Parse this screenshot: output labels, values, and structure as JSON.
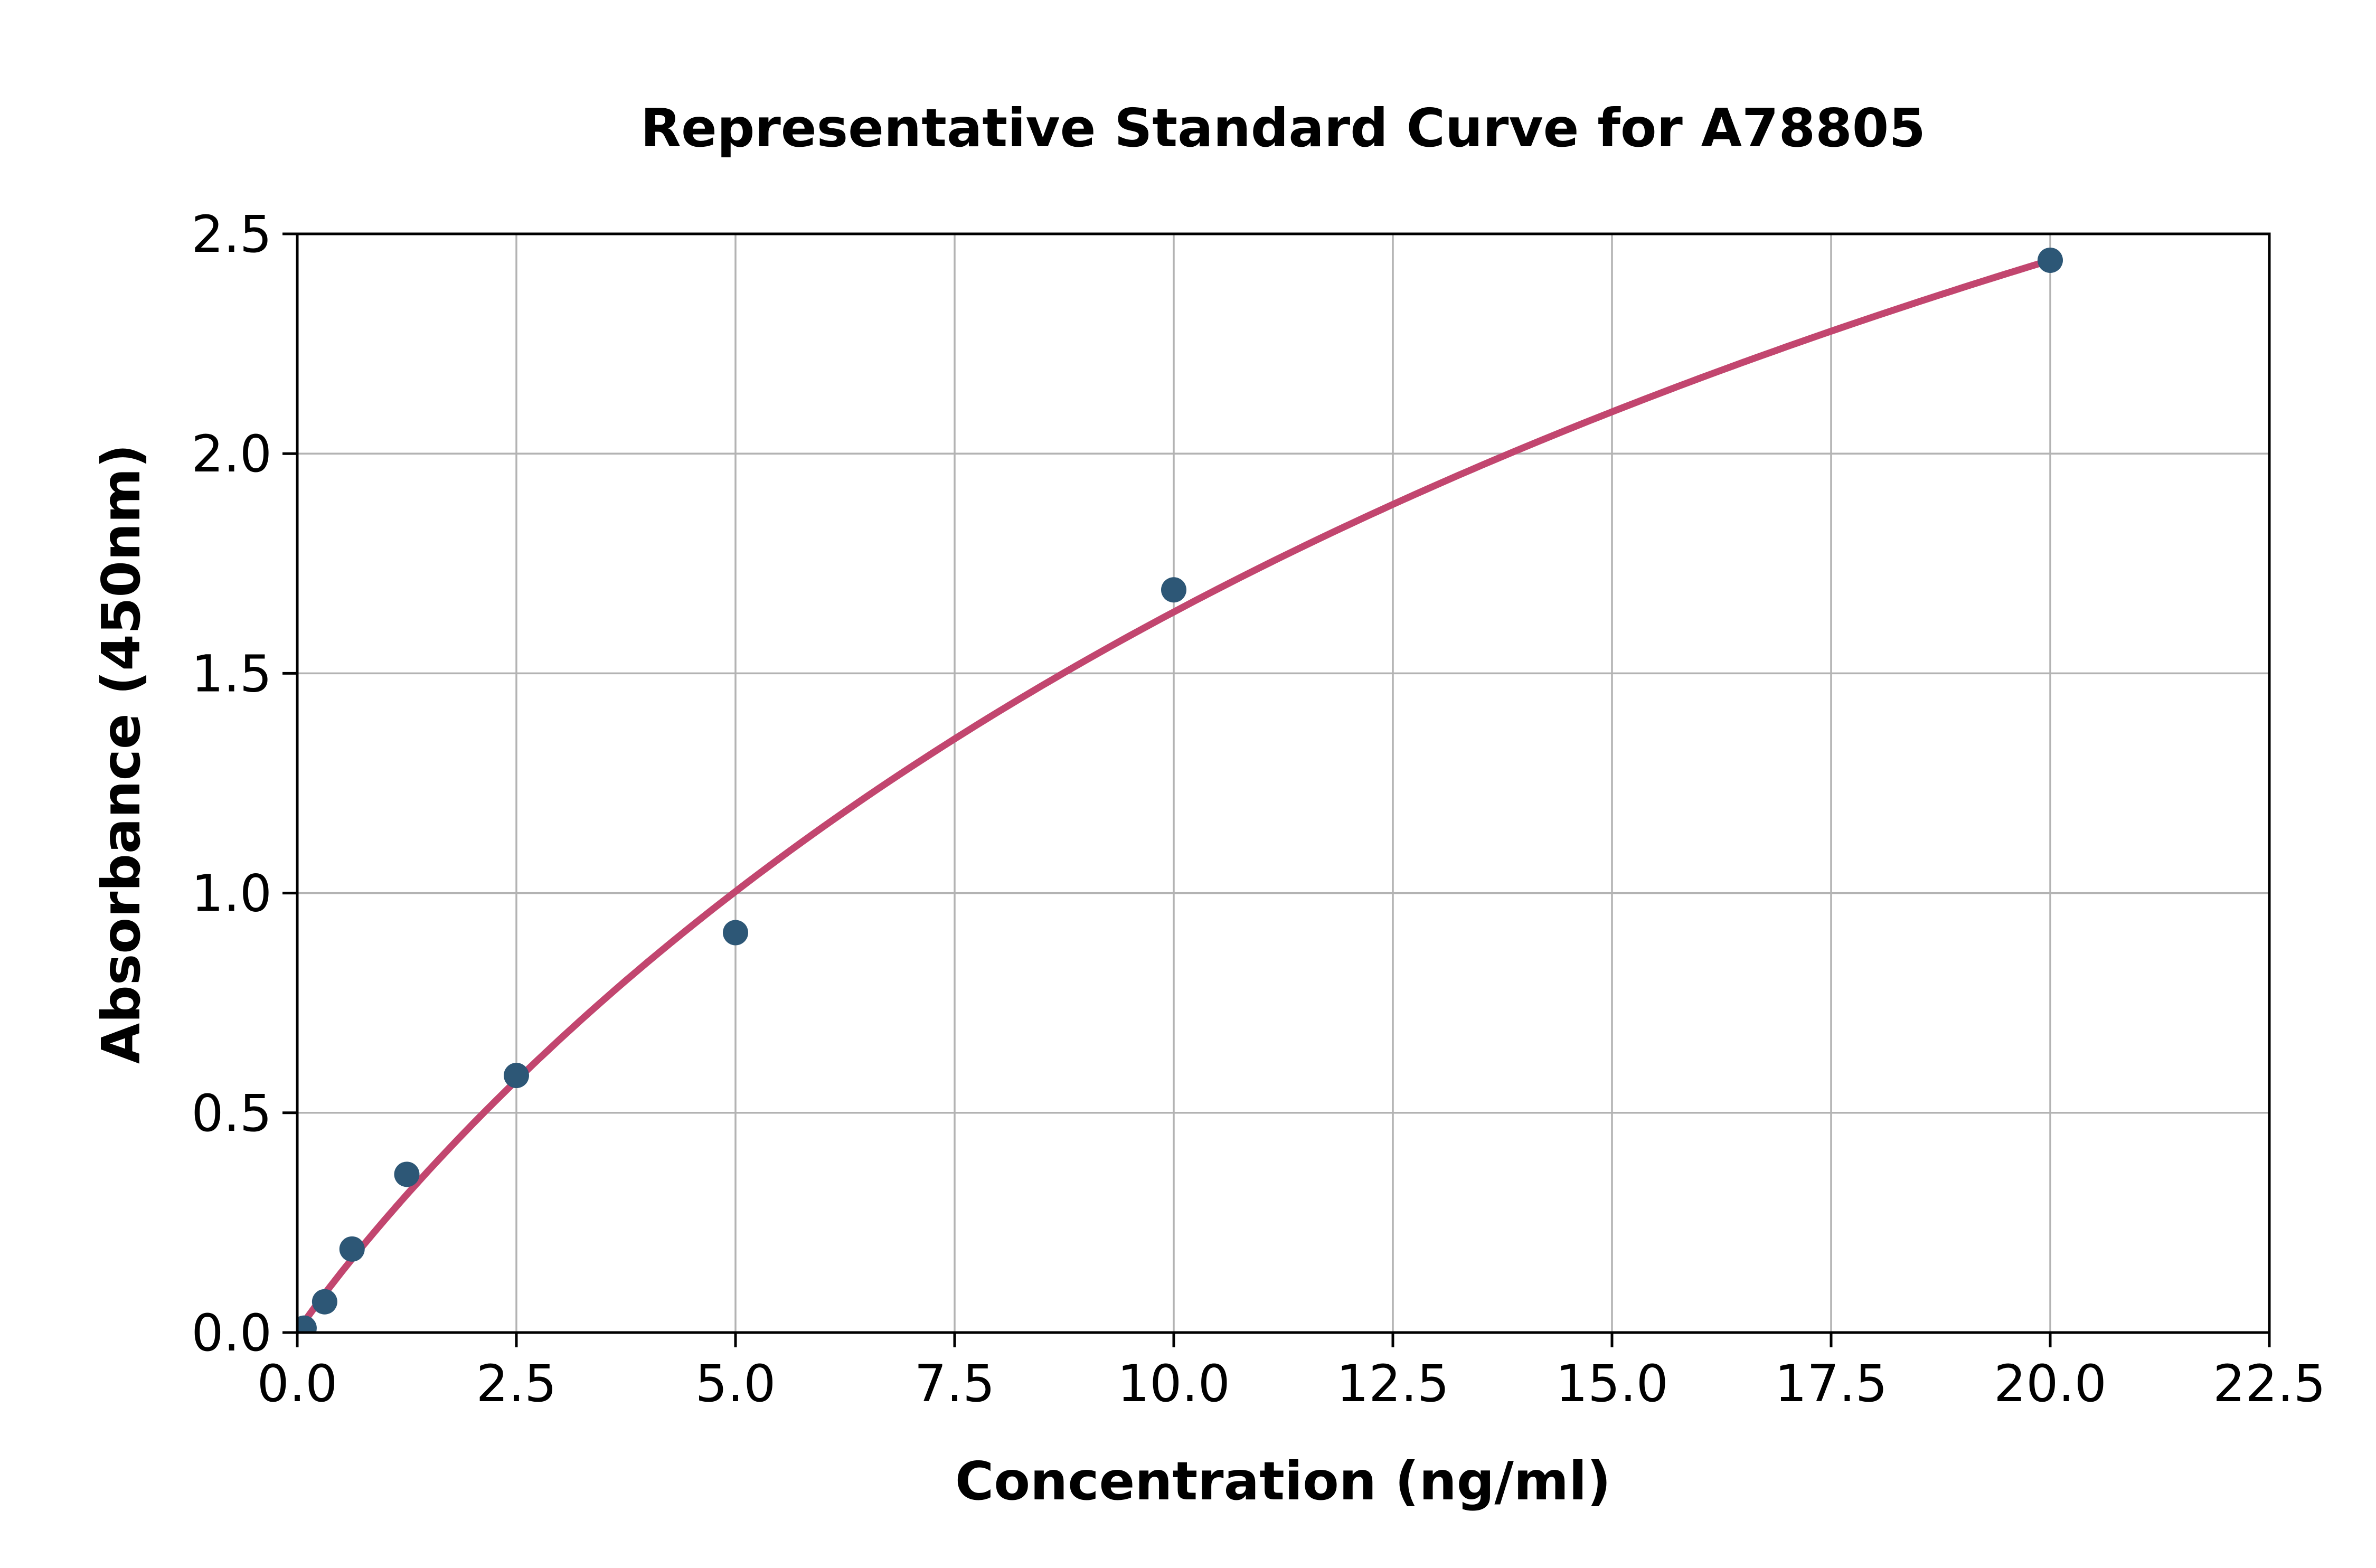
{
  "chart_data": {
    "type": "scatter",
    "title": "Representative Standard Curve for A78805",
    "xlabel": "Concentration (ng/ml)",
    "ylabel": "Absorbance (450nm)",
    "xlim": [
      0,
      22.5
    ],
    "ylim": [
      0,
      2.5
    ],
    "grid": true,
    "legend_position": "none",
    "x_ticks": {
      "values": [
        0,
        2.5,
        5,
        7.5,
        10,
        12.5,
        15,
        17.5,
        20,
        22.5
      ],
      "labels": [
        "0.0",
        "2.5",
        "5.0",
        "7.5",
        "10.0",
        "12.5",
        "15.0",
        "17.5",
        "20.0",
        "22.5"
      ]
    },
    "y_ticks": {
      "values": [
        0,
        0.5,
        1,
        1.5,
        2,
        2.5
      ],
      "labels": [
        "0.0",
        "0.5",
        "1.0",
        "1.5",
        "2.0",
        "2.5"
      ]
    },
    "series": [
      {
        "name": "standard-points",
        "type": "scatter",
        "marker": "circle",
        "points": [
          [
            0.078,
            0.01
          ],
          [
            0.3125,
            0.07
          ],
          [
            0.625,
            0.19
          ],
          [
            1.25,
            0.36
          ],
          [
            2.5,
            0.585
          ],
          [
            5,
            0.91
          ],
          [
            10,
            1.69
          ],
          [
            20,
            2.44
          ]
        ]
      },
      {
        "name": "fit-curve",
        "type": "line",
        "model": {
          "form": "hill",
          "ymax": 5.124,
          "k": 18.94,
          "n": 0.95
        },
        "x_range": [
          0,
          20
        ]
      }
    ],
    "colors": {
      "background": "#ffffff",
      "marker": "#2d5776",
      "curve": "#c2466f",
      "grid": "#b3b3b3",
      "axis": "#000000",
      "text": "#000000"
    }
  }
}
